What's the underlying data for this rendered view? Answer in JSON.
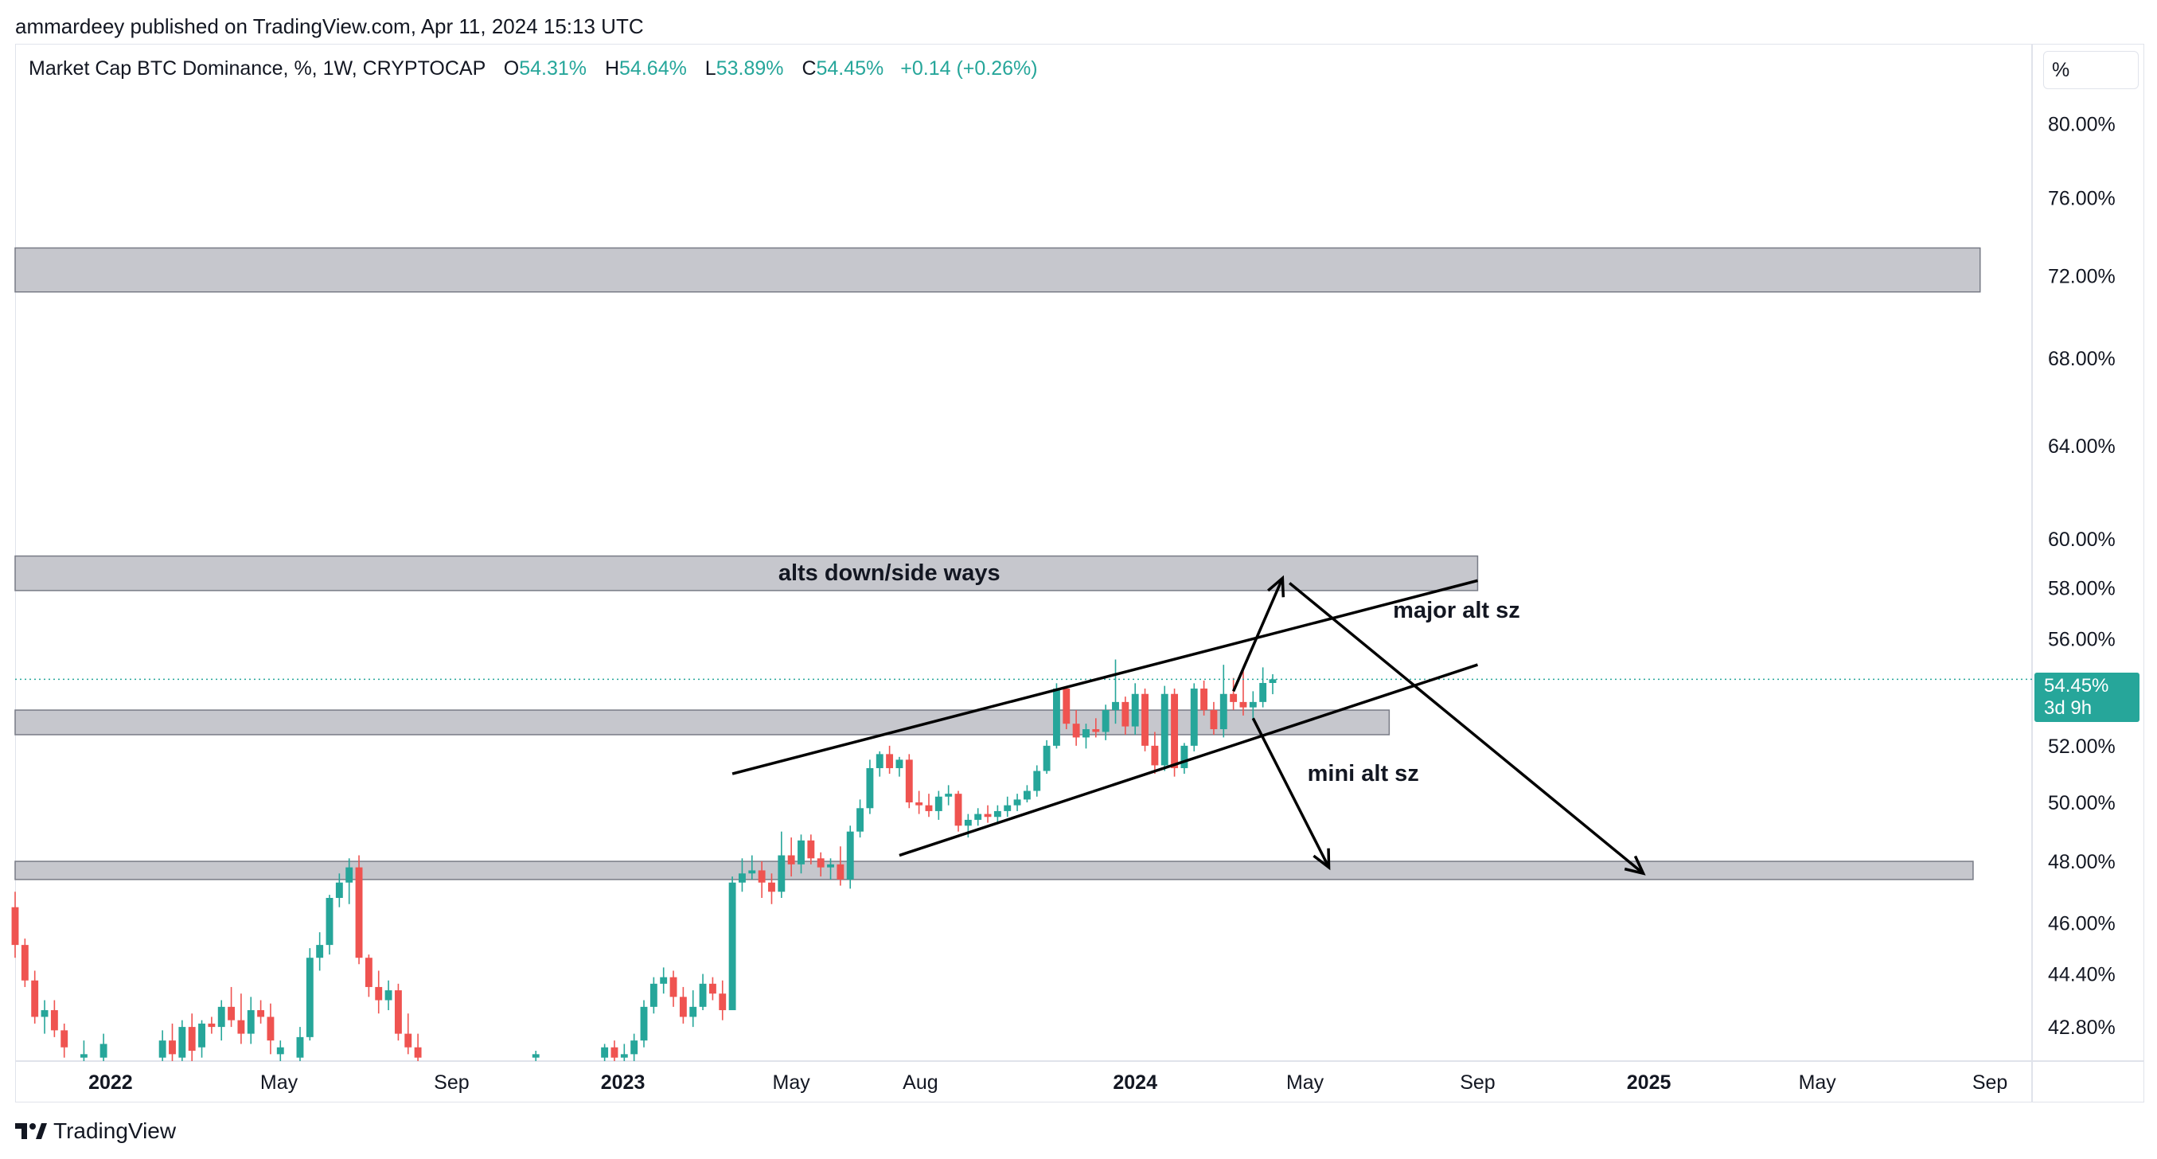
{
  "header": {
    "publisher_line": "ammardeey published on TradingView.com, Apr 11, 2024 15:13 UTC"
  },
  "legend": {
    "symbol": "Market Cap BTC Dominance, %, 1W, CRYPTOCAP",
    "o_label": "O",
    "o_value": "54.31%",
    "h_label": "H",
    "h_value": "54.64%",
    "l_label": "L",
    "l_value": "53.89%",
    "c_label": "C",
    "c_value": "54.45%",
    "change": "+0.14 (+0.26%)"
  },
  "scale_button": "%",
  "last_price": {
    "value": "54.45%",
    "countdown": "3d 9h"
  },
  "footer": {
    "brand": "TradingView"
  },
  "colors": {
    "up": "#26a69a",
    "down": "#ef5350",
    "zone": "#c3c4ca",
    "zone_border": "#787b86"
  },
  "chart_data": {
    "type": "candlestick",
    "title": "Market Cap BTC Dominance, %, 1W, CRYPTOCAP",
    "y_scale": "log",
    "ylim": [
      41.8,
      84.5
    ],
    "y_ticks": [
      "80.00%",
      "76.00%",
      "72.00%",
      "68.00%",
      "64.00%",
      "60.00%",
      "58.00%",
      "56.00%",
      "52.00%",
      "50.00%",
      "48.00%",
      "46.00%",
      "44.40%",
      "42.80%"
    ],
    "y_tick_values": [
      80,
      76,
      72,
      68,
      64,
      60,
      58,
      56,
      52,
      50,
      48,
      46,
      44.4,
      42.8
    ],
    "xlim": [
      "2021-10-25",
      "2025-10-01"
    ],
    "x_ticks": [
      {
        "label": "2022",
        "date": "2022-01-01",
        "bold": true
      },
      {
        "label": "May",
        "date": "2022-05-01",
        "bold": false
      },
      {
        "label": "Sep",
        "date": "2022-09-01",
        "bold": false
      },
      {
        "label": "2023",
        "date": "2023-01-01",
        "bold": true
      },
      {
        "label": "May",
        "date": "2023-05-01",
        "bold": false
      },
      {
        "label": "Aug",
        "date": "2023-08-01",
        "bold": false
      },
      {
        "label": "2024",
        "date": "2024-01-01",
        "bold": true
      },
      {
        "label": "May",
        "date": "2024-05-01",
        "bold": false
      },
      {
        "label": "Sep",
        "date": "2024-09-01",
        "bold": false
      },
      {
        "label": "2025",
        "date": "2025-01-01",
        "bold": true
      },
      {
        "label": "May",
        "date": "2025-05-01",
        "bold": false
      },
      {
        "label": "Sep",
        "date": "2025-09-01",
        "bold": false
      }
    ],
    "candles": [
      {
        "d": "2021-10-25",
        "o": 46.5,
        "h": 47.0,
        "l": 44.9,
        "c": 45.3
      },
      {
        "d": "2021-11-01",
        "o": 45.3,
        "h": 45.5,
        "l": 44.0,
        "c": 44.2
      },
      {
        "d": "2021-11-08",
        "o": 44.2,
        "h": 44.5,
        "l": 42.9,
        "c": 43.1
      },
      {
        "d": "2021-11-15",
        "o": 43.1,
        "h": 43.6,
        "l": 42.6,
        "c": 43.3
      },
      {
        "d": "2021-11-22",
        "o": 43.3,
        "h": 43.6,
        "l": 42.5,
        "c": 42.7
      },
      {
        "d": "2021-11-29",
        "o": 42.7,
        "h": 42.9,
        "l": 41.9,
        "c": 42.2
      },
      {
        "d": "2021-12-13",
        "o": 41.9,
        "h": 42.4,
        "l": 41.8,
        "c": 42.0
      },
      {
        "d": "2021-12-27",
        "o": 41.9,
        "h": 42.6,
        "l": 41.8,
        "c": 42.3
      },
      {
        "d": "2022-02-07",
        "o": 41.9,
        "h": 42.7,
        "l": 41.8,
        "c": 42.4
      },
      {
        "d": "2022-02-14",
        "o": 42.4,
        "h": 42.9,
        "l": 41.8,
        "c": 42.0
      },
      {
        "d": "2022-02-21",
        "o": 41.9,
        "h": 43.0,
        "l": 41.8,
        "c": 42.8
      },
      {
        "d": "2022-02-28",
        "o": 42.8,
        "h": 43.2,
        "l": 41.8,
        "c": 42.1
      },
      {
        "d": "2022-03-07",
        "o": 42.2,
        "h": 43.0,
        "l": 41.9,
        "c": 42.9
      },
      {
        "d": "2022-03-14",
        "o": 42.9,
        "h": 43.1,
        "l": 42.6,
        "c": 42.8
      },
      {
        "d": "2022-03-21",
        "o": 42.8,
        "h": 43.6,
        "l": 42.4,
        "c": 43.4
      },
      {
        "d": "2022-03-28",
        "o": 43.4,
        "h": 44.0,
        "l": 42.8,
        "c": 43.0
      },
      {
        "d": "2022-04-04",
        "o": 43.0,
        "h": 43.8,
        "l": 42.3,
        "c": 42.6
      },
      {
        "d": "2022-04-11",
        "o": 42.6,
        "h": 43.7,
        "l": 42.3,
        "c": 43.3
      },
      {
        "d": "2022-04-18",
        "o": 43.3,
        "h": 43.6,
        "l": 42.9,
        "c": 43.1
      },
      {
        "d": "2022-04-25",
        "o": 43.1,
        "h": 43.5,
        "l": 42.0,
        "c": 42.4
      },
      {
        "d": "2022-05-02",
        "o": 42.0,
        "h": 42.4,
        "l": 41.8,
        "c": 42.2
      },
      {
        "d": "2022-05-16",
        "o": 41.9,
        "h": 42.8,
        "l": 41.8,
        "c": 42.5
      },
      {
        "d": "2022-05-23",
        "o": 42.5,
        "h": 45.2,
        "l": 42.4,
        "c": 44.9
      },
      {
        "d": "2022-05-30",
        "o": 44.9,
        "h": 45.7,
        "l": 44.5,
        "c": 45.3
      },
      {
        "d": "2022-06-06",
        "o": 45.3,
        "h": 46.9,
        "l": 45.0,
        "c": 46.8
      },
      {
        "d": "2022-06-13",
        "o": 46.8,
        "h": 47.6,
        "l": 46.5,
        "c": 47.3
      },
      {
        "d": "2022-06-20",
        "o": 47.3,
        "h": 48.1,
        "l": 46.6,
        "c": 47.8
      },
      {
        "d": "2022-06-27",
        "o": 47.8,
        "h": 48.2,
        "l": 44.7,
        "c": 44.9
      },
      {
        "d": "2022-07-04",
        "o": 44.9,
        "h": 45.0,
        "l": 43.7,
        "c": 44.0
      },
      {
        "d": "2022-07-11",
        "o": 44.0,
        "h": 44.5,
        "l": 43.2,
        "c": 43.6
      },
      {
        "d": "2022-07-18",
        "o": 43.6,
        "h": 44.2,
        "l": 43.3,
        "c": 43.9
      },
      {
        "d": "2022-07-25",
        "o": 43.9,
        "h": 44.1,
        "l": 42.4,
        "c": 42.6
      },
      {
        "d": "2022-08-01",
        "o": 42.6,
        "h": 43.2,
        "l": 42.0,
        "c": 42.2
      },
      {
        "d": "2022-08-08",
        "o": 42.2,
        "h": 42.6,
        "l": 41.8,
        "c": 41.9
      },
      {
        "d": "2022-10-31",
        "o": 41.9,
        "h": 42.1,
        "l": 41.8,
        "c": 42.0
      },
      {
        "d": "2022-12-19",
        "o": 41.9,
        "h": 42.3,
        "l": 41.8,
        "c": 42.2
      },
      {
        "d": "2022-12-26",
        "o": 42.2,
        "h": 42.4,
        "l": 41.8,
        "c": 41.9
      },
      {
        "d": "2023-01-02",
        "o": 41.9,
        "h": 42.3,
        "l": 41.8,
        "c": 42.0
      },
      {
        "d": "2023-01-09",
        "o": 42.0,
        "h": 42.6,
        "l": 41.8,
        "c": 42.4
      },
      {
        "d": "2023-01-16",
        "o": 42.4,
        "h": 43.6,
        "l": 42.2,
        "c": 43.4
      },
      {
        "d": "2023-01-23",
        "o": 43.4,
        "h": 44.3,
        "l": 43.2,
        "c": 44.1
      },
      {
        "d": "2023-01-30",
        "o": 44.1,
        "h": 44.6,
        "l": 43.8,
        "c": 44.3
      },
      {
        "d": "2023-02-06",
        "o": 44.3,
        "h": 44.5,
        "l": 43.4,
        "c": 43.7
      },
      {
        "d": "2023-02-13",
        "o": 43.7,
        "h": 44.0,
        "l": 42.9,
        "c": 43.1
      },
      {
        "d": "2023-02-20",
        "o": 43.1,
        "h": 43.9,
        "l": 42.8,
        "c": 43.4
      },
      {
        "d": "2023-02-27",
        "o": 43.4,
        "h": 44.4,
        "l": 43.3,
        "c": 44.1
      },
      {
        "d": "2023-03-06",
        "o": 44.1,
        "h": 44.3,
        "l": 43.6,
        "c": 43.8
      },
      {
        "d": "2023-03-13",
        "o": 43.8,
        "h": 44.2,
        "l": 43.0,
        "c": 43.3
      },
      {
        "d": "2023-03-20",
        "o": 43.3,
        "h": 47.5,
        "l": 43.3,
        "c": 47.3
      },
      {
        "d": "2023-03-27",
        "o": 47.3,
        "h": 48.1,
        "l": 47.0,
        "c": 47.6
      },
      {
        "d": "2023-04-03",
        "o": 47.6,
        "h": 48.2,
        "l": 47.4,
        "c": 47.7
      },
      {
        "d": "2023-04-10",
        "o": 47.7,
        "h": 48.0,
        "l": 46.8,
        "c": 47.3
      },
      {
        "d": "2023-04-17",
        "o": 47.3,
        "h": 47.6,
        "l": 46.6,
        "c": 47.0
      },
      {
        "d": "2023-04-24",
        "o": 47.0,
        "h": 49.0,
        "l": 46.8,
        "c": 48.2
      },
      {
        "d": "2023-05-01",
        "o": 48.2,
        "h": 48.8,
        "l": 47.5,
        "c": 47.9
      },
      {
        "d": "2023-05-08",
        "o": 47.9,
        "h": 48.9,
        "l": 47.6,
        "c": 48.7
      },
      {
        "d": "2023-05-15",
        "o": 48.7,
        "h": 48.9,
        "l": 47.9,
        "c": 48.1
      },
      {
        "d": "2023-05-22",
        "o": 48.1,
        "h": 48.3,
        "l": 47.5,
        "c": 47.8
      },
      {
        "d": "2023-05-29",
        "o": 47.8,
        "h": 48.1,
        "l": 47.4,
        "c": 47.9
      },
      {
        "d": "2023-06-05",
        "o": 47.9,
        "h": 48.5,
        "l": 47.2,
        "c": 47.4
      },
      {
        "d": "2023-06-12",
        "o": 47.4,
        "h": 49.2,
        "l": 47.1,
        "c": 49.0
      },
      {
        "d": "2023-06-19",
        "o": 49.0,
        "h": 50.1,
        "l": 48.8,
        "c": 49.8
      },
      {
        "d": "2023-06-26",
        "o": 49.8,
        "h": 51.5,
        "l": 49.6,
        "c": 51.2
      },
      {
        "d": "2023-07-03",
        "o": 51.2,
        "h": 51.8,
        "l": 50.9,
        "c": 51.7
      },
      {
        "d": "2023-07-10",
        "o": 51.7,
        "h": 52.0,
        "l": 51.0,
        "c": 51.2
      },
      {
        "d": "2023-07-17",
        "o": 51.2,
        "h": 51.6,
        "l": 50.9,
        "c": 51.5
      },
      {
        "d": "2023-07-24",
        "o": 51.5,
        "h": 51.7,
        "l": 49.8,
        "c": 50.0
      },
      {
        "d": "2023-07-31",
        "o": 50.0,
        "h": 50.4,
        "l": 49.6,
        "c": 49.9
      },
      {
        "d": "2023-08-07",
        "o": 49.9,
        "h": 50.3,
        "l": 49.5,
        "c": 49.7
      },
      {
        "d": "2023-08-14",
        "o": 49.7,
        "h": 50.4,
        "l": 49.4,
        "c": 50.2
      },
      {
        "d": "2023-08-21",
        "o": 50.2,
        "h": 50.6,
        "l": 49.9,
        "c": 50.3
      },
      {
        "d": "2023-08-28",
        "o": 50.3,
        "h": 50.4,
        "l": 49.0,
        "c": 49.2
      },
      {
        "d": "2023-09-04",
        "o": 49.2,
        "h": 49.6,
        "l": 48.8,
        "c": 49.4
      },
      {
        "d": "2023-09-11",
        "o": 49.4,
        "h": 49.8,
        "l": 49.2,
        "c": 49.6
      },
      {
        "d": "2023-09-18",
        "o": 49.6,
        "h": 49.9,
        "l": 49.3,
        "c": 49.5
      },
      {
        "d": "2023-09-25",
        "o": 49.5,
        "h": 49.9,
        "l": 49.3,
        "c": 49.7
      },
      {
        "d": "2023-10-02",
        "o": 49.7,
        "h": 50.2,
        "l": 49.5,
        "c": 49.9
      },
      {
        "d": "2023-10-09",
        "o": 49.9,
        "h": 50.3,
        "l": 49.7,
        "c": 50.1
      },
      {
        "d": "2023-10-16",
        "o": 50.1,
        "h": 50.6,
        "l": 50.0,
        "c": 50.4
      },
      {
        "d": "2023-10-23",
        "o": 50.4,
        "h": 51.3,
        "l": 50.2,
        "c": 51.1
      },
      {
        "d": "2023-10-30",
        "o": 51.1,
        "h": 52.2,
        "l": 51.0,
        "c": 52.0
      },
      {
        "d": "2023-11-06",
        "o": 52.0,
        "h": 54.3,
        "l": 51.9,
        "c": 54.1
      },
      {
        "d": "2023-11-13",
        "o": 54.1,
        "h": 54.2,
        "l": 52.6,
        "c": 52.8
      },
      {
        "d": "2023-11-20",
        "o": 52.8,
        "h": 53.3,
        "l": 52.0,
        "c": 52.3
      },
      {
        "d": "2023-11-27",
        "o": 52.3,
        "h": 52.8,
        "l": 51.9,
        "c": 52.6
      },
      {
        "d": "2023-12-04",
        "o": 52.6,
        "h": 53.0,
        "l": 52.3,
        "c": 52.5
      },
      {
        "d": "2023-12-11",
        "o": 52.5,
        "h": 53.5,
        "l": 52.2,
        "c": 53.3
      },
      {
        "d": "2023-12-18",
        "o": 53.3,
        "h": 55.2,
        "l": 52.8,
        "c": 53.6
      },
      {
        "d": "2023-12-25",
        "o": 53.6,
        "h": 53.8,
        "l": 52.4,
        "c": 52.7
      },
      {
        "d": "2024-01-01",
        "o": 52.7,
        "h": 54.3,
        "l": 52.4,
        "c": 53.9
      },
      {
        "d": "2024-01-08",
        "o": 53.9,
        "h": 54.1,
        "l": 51.8,
        "c": 52.0
      },
      {
        "d": "2024-01-15",
        "o": 52.0,
        "h": 52.5,
        "l": 51.0,
        "c": 51.3
      },
      {
        "d": "2024-01-22",
        "o": 51.3,
        "h": 54.2,
        "l": 51.1,
        "c": 53.9
      },
      {
        "d": "2024-01-29",
        "o": 53.9,
        "h": 54.1,
        "l": 50.9,
        "c": 51.2
      },
      {
        "d": "2024-02-05",
        "o": 51.2,
        "h": 52.1,
        "l": 51.0,
        "c": 52.0
      },
      {
        "d": "2024-02-12",
        "o": 52.0,
        "h": 54.3,
        "l": 51.8,
        "c": 54.1
      },
      {
        "d": "2024-02-19",
        "o": 54.1,
        "h": 54.4,
        "l": 53.1,
        "c": 53.3
      },
      {
        "d": "2024-02-26",
        "o": 53.3,
        "h": 53.6,
        "l": 52.4,
        "c": 52.6
      },
      {
        "d": "2024-03-04",
        "o": 52.6,
        "h": 55.0,
        "l": 52.3,
        "c": 53.9
      },
      {
        "d": "2024-03-11",
        "o": 53.9,
        "h": 54.5,
        "l": 53.3,
        "c": 53.6
      },
      {
        "d": "2024-03-18",
        "o": 53.6,
        "h": 54.8,
        "l": 53.1,
        "c": 53.4
      },
      {
        "d": "2024-03-25",
        "o": 53.4,
        "h": 54.0,
        "l": 52.9,
        "c": 53.6
      },
      {
        "d": "2024-04-01",
        "o": 53.6,
        "h": 54.9,
        "l": 53.4,
        "c": 54.31
      },
      {
        "d": "2024-04-08",
        "o": 54.31,
        "h": 54.64,
        "l": 53.89,
        "c": 54.45
      }
    ],
    "zones": [
      {
        "from": 71.2,
        "to": 73.4,
        "start": "2021-10-25",
        "end": "2025-08-25"
      },
      {
        "from": 57.9,
        "to": 59.3,
        "start": "2021-10-25",
        "end": "2024-09-01"
      },
      {
        "from": 52.4,
        "to": 53.3,
        "start": "2021-10-25",
        "end": "2024-06-30"
      },
      {
        "from": 47.4,
        "to": 48.0,
        "start": "2021-10-25",
        "end": "2025-08-20"
      }
    ],
    "trendlines": [
      {
        "start": {
          "d": "2023-03-20",
          "v": 51.0
        },
        "end": {
          "d": "2024-09-01",
          "v": 58.3
        }
      },
      {
        "start": {
          "d": "2023-07-17",
          "v": 48.2
        },
        "end": {
          "d": "2024-09-01",
          "v": 55.0
        }
      }
    ],
    "arrows": [
      {
        "start": {
          "d": "2024-03-11",
          "v": 54.0
        },
        "end": {
          "d": "2024-04-15",
          "v": 58.4
        }
      },
      {
        "start": {
          "d": "2024-03-25",
          "v": 53.0
        },
        "end": {
          "d": "2024-05-18",
          "v": 47.8
        }
      },
      {
        "start": {
          "d": "2024-04-20",
          "v": 58.2
        },
        "end": {
          "d": "2024-12-28",
          "v": 47.6
        }
      }
    ],
    "annotations": [
      {
        "text": "alts down/side ways",
        "d": "2023-04-24",
        "v": 58.6
      },
      {
        "text": "major alt sz",
        "d": "2024-07-05",
        "v": 57.1
      },
      {
        "text": "mini alt sz",
        "d": "2024-05-05",
        "v": 51.0
      }
    ],
    "last_price_value": 54.45
  }
}
